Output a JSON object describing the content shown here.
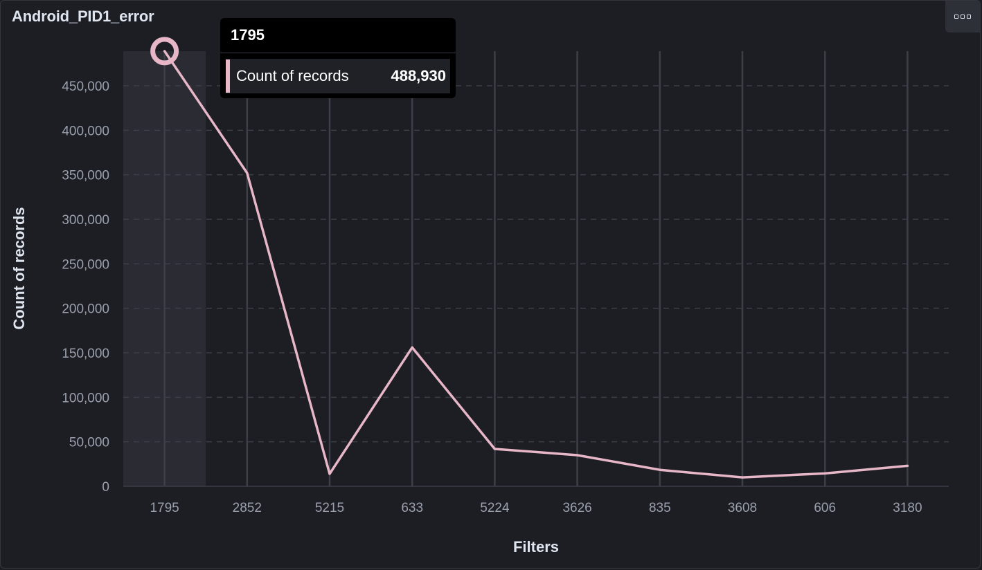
{
  "panel": {
    "title": "Android_PID1_error",
    "menu_icon": "more-options-icon"
  },
  "tooltip": {
    "category": "1795",
    "series_label": "Count of records",
    "value": "488,930",
    "swatch_color": "#e7b7c8"
  },
  "chart_data": {
    "type": "line",
    "title": "",
    "xlabel": "Filters",
    "ylabel": "Count of records",
    "categories": [
      "1795",
      "2852",
      "5215",
      "633",
      "5224",
      "3626",
      "835",
      "3608",
      "606",
      "3180"
    ],
    "series": [
      {
        "name": "Count of records",
        "color": "#e7b7c8",
        "values": [
          488930,
          352000,
          14000,
          156000,
          42000,
          35000,
          18500,
          10000,
          14500,
          23000
        ]
      }
    ],
    "yticks": [
      0,
      50000,
      100000,
      150000,
      200000,
      250000,
      300000,
      350000,
      400000,
      450000
    ],
    "ytick_labels": [
      "0",
      "50,000",
      "100,000",
      "150,000",
      "200,000",
      "250,000",
      "300,000",
      "350,000",
      "400,000",
      "450,000"
    ],
    "ylim": [
      0,
      488930
    ],
    "highlighted_category": "1795",
    "grid": true,
    "colors": {
      "background": "#1d1e24",
      "grid": "#3d3f48",
      "axis_text": "#9aa0ad",
      "label_text": "#dfe5ef",
      "highlight_band": "#2a2b33"
    }
  }
}
